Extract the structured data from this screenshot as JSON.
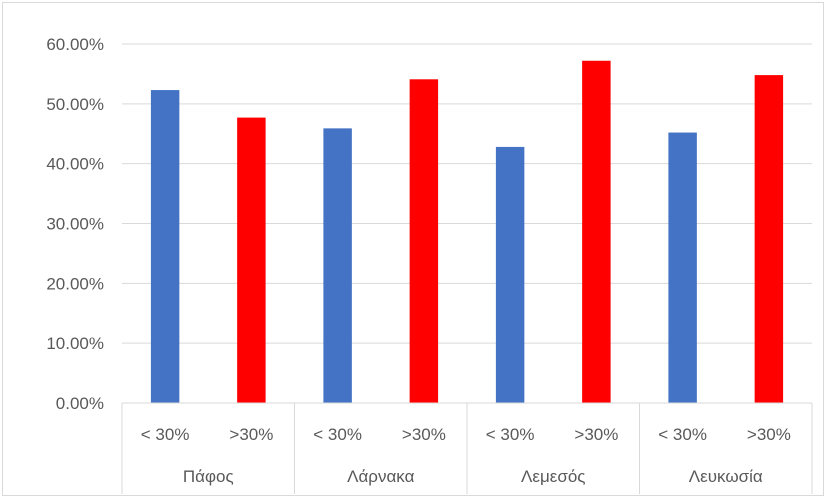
{
  "chart_data": {
    "type": "bar",
    "groups": [
      "Πάφος",
      "Λάρνακα",
      "Λεμεσός",
      "Λευκωσία"
    ],
    "subcategories": [
      "< 30%",
      ">30%"
    ],
    "series": [
      {
        "values": [
          52.3,
          45.9,
          42.8,
          45.2
        ],
        "color": "#4472C4"
      },
      {
        "values": [
          47.7,
          54.1,
          57.2,
          54.8
        ],
        "color": "#FF0000"
      }
    ],
    "y_ticks": [
      "0.00%",
      "10.00%",
      "20.00%",
      "30.00%",
      "40.00%",
      "50.00%",
      "60.00%"
    ],
    "ylim": [
      0,
      60
    ],
    "value_unit": "%",
    "grid": true,
    "legend": "none",
    "title": "",
    "xlabel": "",
    "ylabel": ""
  }
}
